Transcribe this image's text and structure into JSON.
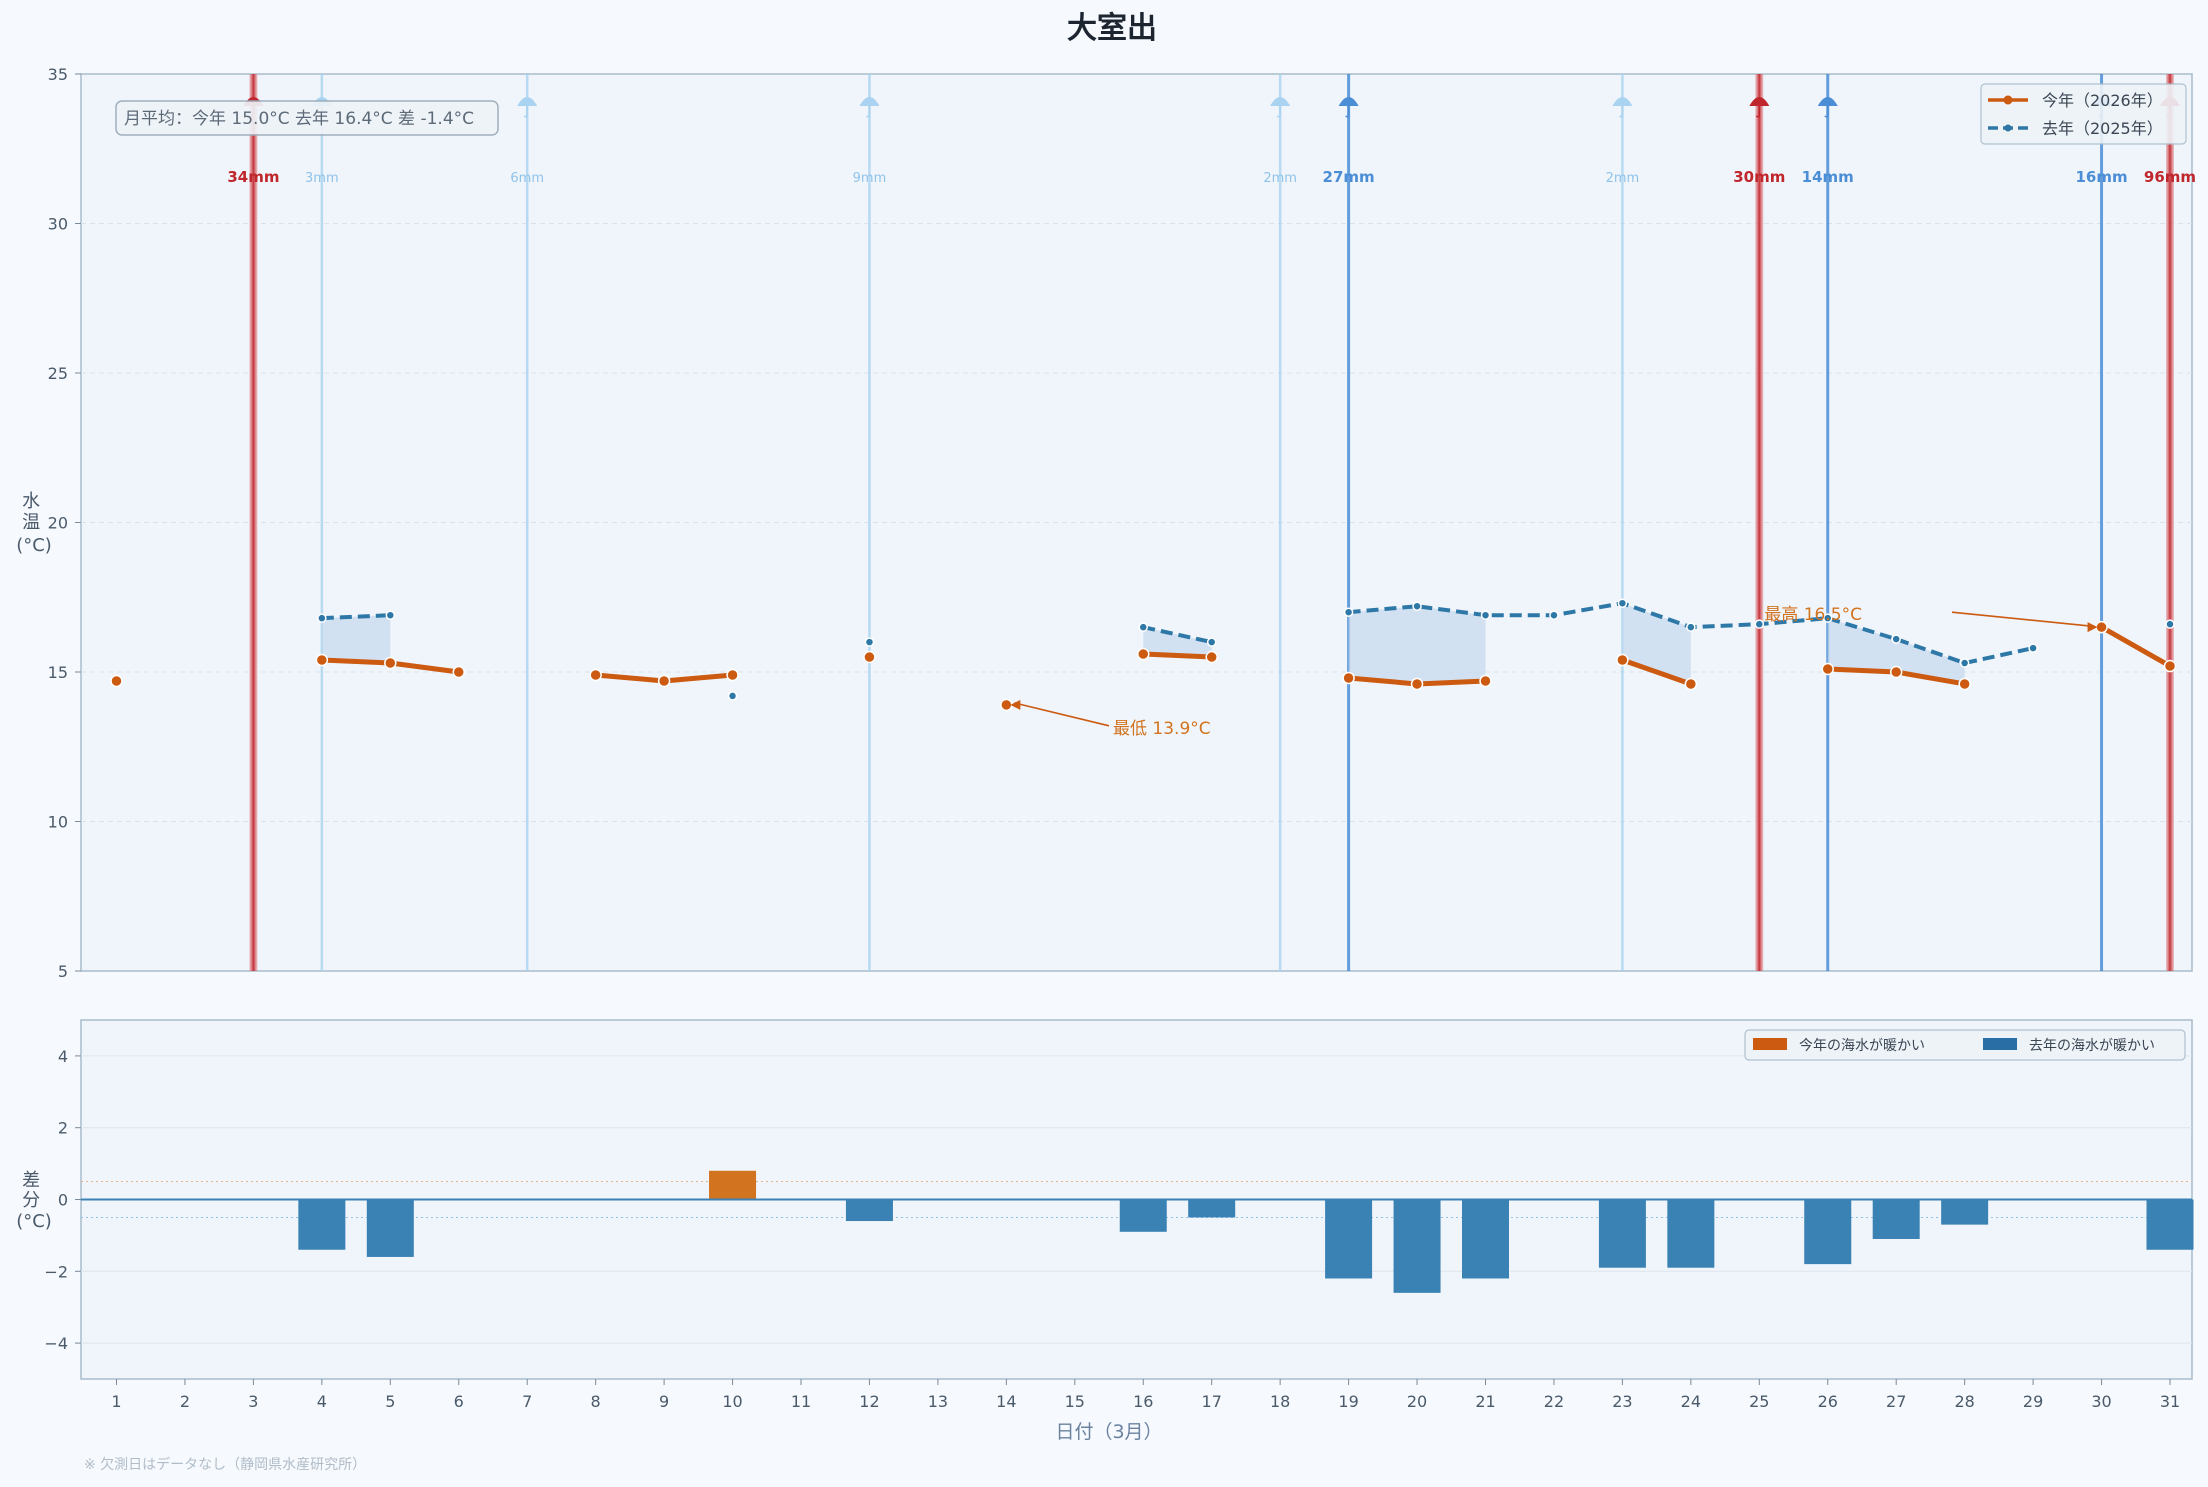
{
  "title": "大室出",
  "summary_box": "月平均：今年 15.0°C  去年 16.4°C  差 -1.4°C",
  "footnote": "※ 欠測日はデータなし（静岡県水産研究所）",
  "colors": {
    "this_year": "#cc5a10",
    "last_year": "#2e78a8",
    "fill": "#c4d9ec",
    "bar_warm": "#d2731f",
    "bar_cold": "#3a82b4",
    "rain_light": "#a9d3f0",
    "rain_mid": "#4b8ed6",
    "rain_heavy": "#c0272d"
  },
  "chart_data": [
    {
      "type": "line",
      "title": "大室出",
      "ylabel": "水温\n(°C)",
      "xlabel": "",
      "ylim": [
        5,
        35
      ],
      "yticks": [
        5,
        10,
        15,
        20,
        25,
        30,
        35
      ],
      "x": [
        1,
        2,
        3,
        4,
        5,
        6,
        7,
        8,
        9,
        10,
        11,
        12,
        13,
        14,
        15,
        16,
        17,
        18,
        19,
        20,
        21,
        22,
        23,
        24,
        25,
        26,
        27,
        28,
        29,
        30,
        31
      ],
      "legend_position": "top-right",
      "grid": true,
      "series": [
        {
          "name": "今年（2026年）",
          "style": "solid",
          "values": [
            14.7,
            null,
            null,
            15.4,
            15.3,
            15.0,
            null,
            14.9,
            14.7,
            14.9,
            null,
            15.5,
            null,
            13.9,
            null,
            15.6,
            15.5,
            null,
            14.8,
            14.6,
            14.7,
            null,
            15.4,
            14.6,
            null,
            15.1,
            15.0,
            14.6,
            null,
            16.5,
            15.2
          ]
        },
        {
          "name": "去年（2025年）",
          "style": "dashed",
          "values": [
            null,
            null,
            null,
            16.8,
            16.9,
            null,
            null,
            null,
            null,
            14.2,
            null,
            16.0,
            null,
            null,
            null,
            16.5,
            16.0,
            null,
            17.0,
            17.2,
            16.9,
            16.9,
            17.3,
            16.5,
            16.6,
            16.8,
            16.1,
            15.3,
            15.8,
            null,
            16.6
          ]
        }
      ],
      "rain": [
        {
          "day": 3,
          "label": "34mm",
          "level": "heavy"
        },
        {
          "day": 4,
          "label": "3mm",
          "level": "light"
        },
        {
          "day": 7,
          "label": "6mm",
          "level": "light"
        },
        {
          "day": 12,
          "label": "9mm",
          "level": "light"
        },
        {
          "day": 18,
          "label": "2mm",
          "level": "light"
        },
        {
          "day": 19,
          "label": "27mm",
          "level": "mid"
        },
        {
          "day": 23,
          "label": "2mm",
          "level": "light"
        },
        {
          "day": 25,
          "label": "30mm",
          "level": "heavy"
        },
        {
          "day": 26,
          "label": "14mm",
          "level": "mid"
        },
        {
          "day": 30,
          "label": "16mm",
          "level": "mid"
        },
        {
          "day": 31,
          "label": "96mm",
          "level": "heavy"
        }
      ],
      "annotations": [
        {
          "text": "最低 13.9°C",
          "day": 14,
          "value": 13.9,
          "text_day": 15.5,
          "text_value": 13.2
        },
        {
          "text": "最高 16.5°C",
          "day": 30,
          "value": 16.5,
          "text_day": 26.5,
          "text_value": 17.0
        }
      ]
    },
    {
      "type": "bar",
      "ylabel": "差\n分\n(°C)",
      "xlabel": "日付（3月）",
      "ylim": [
        -5,
        5
      ],
      "yticks": [
        -4,
        -2,
        0,
        2,
        4
      ],
      "reference_lines": [
        0.5,
        -0.5
      ],
      "x": [
        1,
        2,
        3,
        4,
        5,
        6,
        7,
        8,
        9,
        10,
        11,
        12,
        13,
        14,
        15,
        16,
        17,
        18,
        19,
        20,
        21,
        22,
        23,
        24,
        25,
        26,
        27,
        28,
        29,
        30,
        31
      ],
      "values": [
        null,
        null,
        null,
        -1.4,
        -1.6,
        null,
        null,
        null,
        null,
        0.8,
        null,
        -0.6,
        null,
        null,
        null,
        -0.9,
        -0.5,
        null,
        -2.2,
        -2.6,
        -2.2,
        null,
        -1.9,
        -1.9,
        null,
        -1.8,
        -1.1,
        -0.7,
        null,
        null,
        -1.4
      ],
      "legend_position": "top-right",
      "legend": [
        "今年の海水が暖かい",
        "去年の海水が暖かい"
      ]
    }
  ]
}
